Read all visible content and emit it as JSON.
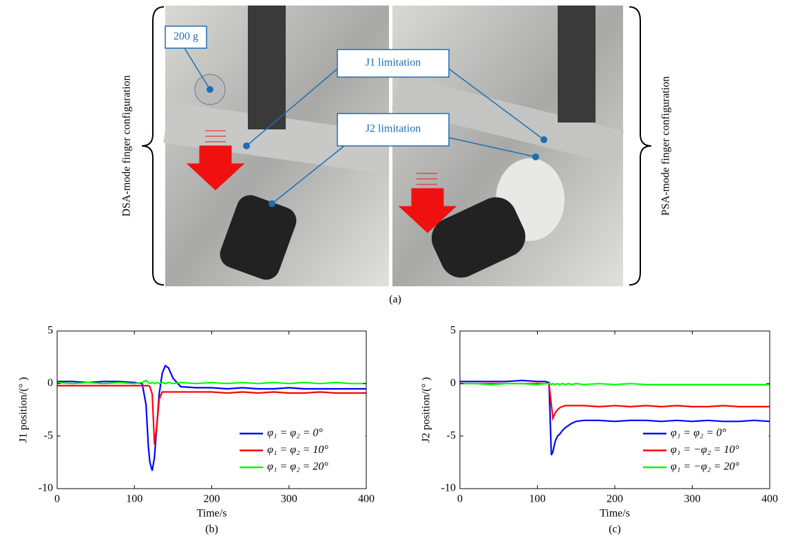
{
  "photo_panel": {
    "left_label": "DSA-mode finger configuration",
    "right_label": "PSA-mode finger configuration",
    "callouts": [
      "200 g",
      "J1 limitation",
      "J2 limitation"
    ],
    "caption": "(a)"
  },
  "chart_data": [
    {
      "type": "line",
      "caption": "(b)",
      "xlabel": "Time/s",
      "ylabel": "J1 position/(° )",
      "x": [
        0,
        20,
        40,
        60,
        80,
        100,
        110,
        115,
        118,
        120,
        123,
        126,
        129,
        132,
        136,
        140,
        144,
        150,
        160,
        180,
        200,
        220,
        240,
        260,
        280,
        300,
        320,
        340,
        360,
        380,
        400
      ],
      "xlim": [
        0,
        400
      ],
      "xticks": [
        0,
        100,
        200,
        300,
        400
      ],
      "ylim": [
        -10,
        5
      ],
      "yticks": [
        -10,
        -5,
        0,
        5
      ],
      "legend": "lower right",
      "series": [
        {
          "name": "φ₁ = φ₂ = 0°",
          "color": "#0000ff",
          "values": [
            0.2,
            0.2,
            0.1,
            0.2,
            0.2,
            0.1,
            0,
            -2,
            -6,
            -7.5,
            -8.3,
            -7,
            -4,
            -1,
            1,
            1.7,
            1.5,
            0.5,
            -0.3,
            -0.4,
            -0.4,
            -0.5,
            -0.4,
            -0.5,
            -0.5,
            -0.4,
            -0.5,
            -0.5,
            -0.5,
            -0.5,
            -0.5
          ]
        },
        {
          "name": "φ₁ = φ₂ = 10°",
          "color": "#ff0000",
          "values": [
            -0.2,
            -0.2,
            -0.2,
            -0.2,
            -0.2,
            -0.2,
            -0.2,
            -0.2,
            -0.2,
            -0.3,
            -1,
            -5.8,
            -4,
            -1.5,
            -0.8,
            -0.8,
            -0.8,
            -0.8,
            -0.8,
            -0.8,
            -0.8,
            -0.9,
            -0.8,
            -0.9,
            -0.8,
            -0.9,
            -0.9,
            -0.8,
            -0.9,
            -0.9,
            -0.9
          ]
        },
        {
          "name": "φ₁ = φ₂ = 20°",
          "color": "#00ff00",
          "values": [
            0.1,
            0,
            0.1,
            0,
            0.1,
            0,
            0.1,
            0.3,
            0.1,
            0,
            0.1,
            0,
            0.1,
            0,
            0.1,
            0,
            0.1,
            0,
            0.1,
            0,
            0.1,
            0,
            0.1,
            0,
            0.1,
            0,
            0.1,
            0,
            0.1,
            0,
            0
          ]
        }
      ]
    },
    {
      "type": "line",
      "caption": "(c)",
      "xlabel": "Time/s",
      "ylabel": "J2 position/(° )",
      "x": [
        0,
        20,
        40,
        60,
        80,
        100,
        110,
        115,
        118,
        120,
        123,
        126,
        129,
        132,
        136,
        140,
        144,
        150,
        160,
        180,
        200,
        220,
        240,
        260,
        280,
        300,
        320,
        340,
        360,
        380,
        400
      ],
      "xlim": [
        0,
        400
      ],
      "xticks": [
        0,
        100,
        200,
        300,
        400
      ],
      "ylim": [
        -10,
        5
      ],
      "yticks": [
        -10,
        -5,
        0,
        5
      ],
      "legend": "lower right",
      "series": [
        {
          "name": "φ₁ = φ₂ = 0°",
          "color": "#0000ff",
          "values": [
            0.2,
            0.2,
            0.2,
            0.2,
            0.3,
            0.2,
            0.2,
            0.1,
            -6.8,
            -6.5,
            -5.5,
            -5,
            -4.8,
            -4.5,
            -4.2,
            -4,
            -3.8,
            -3.6,
            -3.5,
            -3.5,
            -3.6,
            -3.5,
            -3.5,
            -3.6,
            -3.5,
            -3.6,
            -3.5,
            -3.6,
            -3.6,
            -3.5,
            -3.6
          ]
        },
        {
          "name": "φ₁ = −φ₂ = 10°",
          "color": "#ff0000",
          "values": [
            0,
            0,
            0,
            0,
            0,
            0,
            0,
            0,
            -2,
            -3.3,
            -2.8,
            -2.5,
            -2.3,
            -2.2,
            -2.1,
            -2.1,
            -2.1,
            -2.1,
            -2.1,
            -2.2,
            -2.1,
            -2.2,
            -2.1,
            -2.2,
            -2.1,
            -2.2,
            -2.2,
            -2.1,
            -2.2,
            -2.2,
            -2.2
          ]
        },
        {
          "name": "φ₁ = −φ₂ = 20°",
          "color": "#00ff00",
          "values": [
            0,
            0,
            -0.1,
            0,
            0,
            -0.1,
            0,
            0,
            -0.1,
            0,
            -0.1,
            0,
            -0.1,
            0,
            -0.1,
            0,
            -0.1,
            0,
            -0.1,
            0,
            -0.1,
            0,
            -0.1,
            -0.1,
            -0.1,
            -0.1,
            -0.1,
            -0.1,
            -0.1,
            -0.1,
            -0.1
          ]
        }
      ]
    }
  ]
}
